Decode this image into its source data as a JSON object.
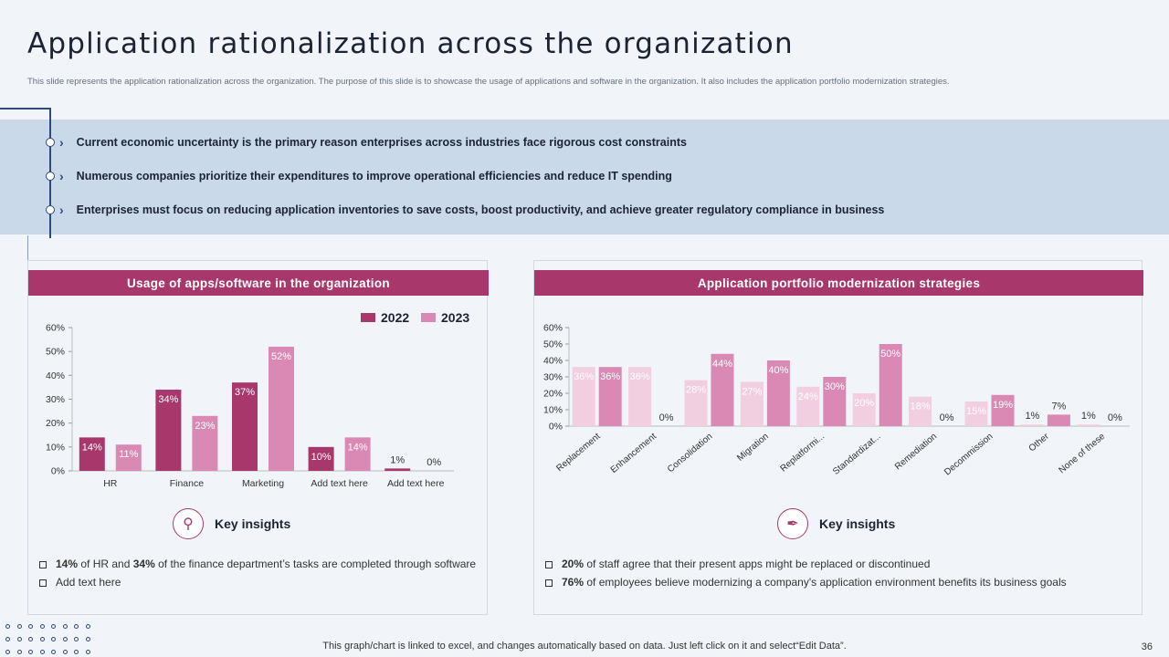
{
  "slide": {
    "title": "Application rationalization across the organization",
    "subtitle": "This slide represents the application rationalization across the organization. The purpose of this slide is to showcase the usage of applications and software in the organization. It also includes the application portfolio modernization strategies.",
    "footer": "This graph/chart is linked to excel, and changes automatically based on data. Just left click on it and select“Edit Data”.",
    "page_number": "36"
  },
  "bullets": [
    "Current economic uncertainty is the primary reason enterprises across industries face rigorous cost constraints",
    "Numerous companies prioritize their expenditures to improve operational efficiencies and reduce IT spending",
    "Enterprises must focus on reducing application inventories to save costs,  boost productivity, and achieve greater regulatory compliance in business"
  ],
  "left_panel": {
    "header": "Usage of apps/software in the organization",
    "insight_label": "Key insights",
    "insight_icon": "magnifier-bug-icon",
    "notes": [
      {
        "parts": [
          {
            "b": "14%"
          },
          {
            "t": " of HR and "
          },
          {
            "b": "34%"
          },
          {
            "t": " of the finance department’s tasks are completed through software"
          }
        ]
      },
      {
        "parts": [
          {
            "t": "Add text here"
          }
        ]
      }
    ]
  },
  "right_panel": {
    "header": "Application portfolio modernization strategies",
    "insight_label": "Key insights",
    "insight_icon": "pen-nib-icon",
    "notes": [
      {
        "parts": [
          {
            "b": "20%"
          },
          {
            "t": " of staff agree that their present apps might be replaced or discontinued"
          }
        ]
      },
      {
        "parts": [
          {
            "b": "76%"
          },
          {
            "t": " of employees believe modernizing a company's application environment  benefits its business goals"
          }
        ]
      }
    ]
  },
  "colors": {
    "accent": "#a8386c",
    "series_2022": "#a8386c",
    "series_2023": "#d989b4",
    "band": "#c9d9ea",
    "navy": "#2e4a7a"
  },
  "chart_data": [
    {
      "type": "bar",
      "categories": [
        "HR",
        "Finance",
        "Marketing",
        "Add text here",
        "Add text here"
      ],
      "series": [
        {
          "name": "2022",
          "values": [
            14,
            34,
            37,
            10,
            1
          ],
          "labels": [
            "14%",
            "34%",
            "37%",
            "10%",
            "1%"
          ]
        },
        {
          "name": "2023",
          "values": [
            11,
            23,
            52,
            14,
            0
          ],
          "labels": [
            "11%",
            "23%",
            "52%",
            "14%",
            "0%"
          ]
        }
      ],
      "ylim": [
        0,
        60
      ],
      "yticks": [
        "0%",
        "10%",
        "20%",
        "30%",
        "40%",
        "50%",
        "60%"
      ],
      "legend_position": "top-right"
    },
    {
      "type": "bar",
      "categories": [
        "Replacement",
        "Enhancement",
        "Consolidation",
        "Migration",
        "Replatformi...",
        "Standardizat...",
        "Remediation",
        "Decommission",
        "Other",
        "None of these"
      ],
      "series": [
        {
          "values": [
            36,
            36,
            28,
            27,
            24,
            20,
            18,
            15,
            1,
            1
          ],
          "labels": [
            "36%",
            "36%",
            "28%",
            "27%",
            "24%",
            "20%",
            "18%",
            "15%",
            "1%",
            "1%"
          ],
          "color": "#f2cfe0"
        },
        {
          "values": [
            36,
            0,
            44,
            40,
            30,
            50,
            0,
            19,
            7,
            0
          ],
          "labels": [
            "36%",
            "0%",
            "44%",
            "40%",
            "30%",
            "50%",
            "0%",
            "19%",
            "7%",
            "0%"
          ],
          "color": "#d989b4"
        }
      ],
      "ylim": [
        0,
        60
      ],
      "yticks": [
        "0%",
        "10%",
        "20%",
        "30%",
        "40%",
        "50%",
        "60%"
      ]
    }
  ]
}
